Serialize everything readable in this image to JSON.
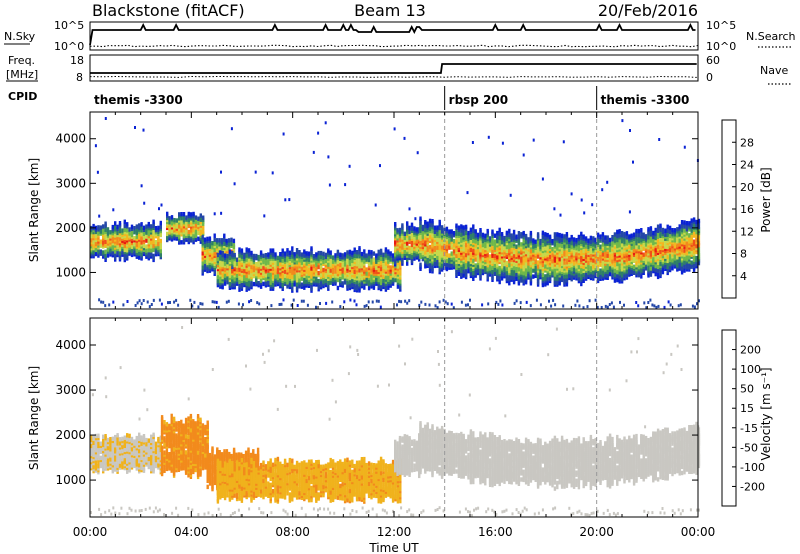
{
  "header": {
    "station": "Blackstone (fitACF)",
    "beam": "Beam 13",
    "date": "20/Feb/2016"
  },
  "summary": {
    "nsky_label": "N.Sky",
    "nsky_ticks": [
      "10^5",
      "10^0"
    ],
    "nsearch_label": "N.Search",
    "nsearch_ticks": [
      "10^5",
      "10^0"
    ],
    "freq_label_line1": "Freq.",
    "freq_label_line2": "[MHz]",
    "freq_ticks": [
      "18",
      "8"
    ],
    "nave_label": "Nave",
    "nave_ticks": [
      "60",
      "0"
    ],
    "cpid_label": "CPID",
    "cpid_segments": [
      {
        "label": "themis -3300",
        "start_hour": 0.0
      },
      {
        "label": "rbsp 200",
        "start_hour": 14.0
      },
      {
        "label": "themis -3300",
        "start_hour": 20.0
      }
    ]
  },
  "colors": {
    "power_scale": [
      "#0a22d4",
      "#2447a8",
      "#2f7f68",
      "#6fb84a",
      "#c8d84a",
      "#f2b820",
      "#f28a1c",
      "#f05018",
      "#e81a12"
    ],
    "velocity_scale": [
      "#e81a12",
      "#f04818",
      "#f28a1c",
      "#f0b21c",
      "#c9c7c2",
      "#c9c7c2",
      "#6cc43a",
      "#2f8a6e",
      "#2a5cc8",
      "#1536c8"
    ]
  },
  "chart_data": [
    {
      "type": "heatmap",
      "title": "Power",
      "ylabel": "Slant Range [km]",
      "xlabel": "Time UT",
      "xlim_hours": [
        0,
        24
      ],
      "ylim": [
        180,
        4600
      ],
      "yticks": [
        "1000",
        "2000",
        "3000",
        "4000"
      ],
      "colorbar": {
        "label": "Power [dB]",
        "ticks": [
          "4",
          "8",
          "12",
          "16",
          "20",
          "24",
          "28"
        ],
        "range": [
          0,
          32
        ]
      },
      "echo_bands": [
        {
          "t_start": 0.0,
          "t_end": 2.8,
          "center_km": 1760,
          "width_km": 380
        },
        {
          "t_start": 3.0,
          "t_end": 4.5,
          "center_km": 2050,
          "width_km": 300
        },
        {
          "t_start": 4.4,
          "t_end": 5.7,
          "center_km": 1450,
          "width_km": 380
        },
        {
          "t_start": 5.0,
          "t_end": 12.2,
          "center_km": 1120,
          "width_km": 420
        },
        {
          "t_start": 12.0,
          "t_end": 13.0,
          "center_km": 1700,
          "width_km": 420
        },
        {
          "t_start": 13.0,
          "t_end": 24.0,
          "center_km": 1480,
          "width_km": 520
        }
      ]
    },
    {
      "type": "heatmap",
      "title": "Velocity",
      "ylabel": "Slant Range [km]",
      "xlabel": "Time UT",
      "xlim_hours": [
        0,
        24
      ],
      "ylim": [
        180,
        4600
      ],
      "yticks": [
        "1000",
        "2000",
        "3000",
        "4000"
      ],
      "colorbar": {
        "label": "Velocity [m s⁻¹]",
        "ticks": [
          "200",
          "100",
          "50",
          "15",
          "-15",
          "-50",
          "-100",
          "-200"
        ],
        "range": [
          -250,
          250
        ]
      },
      "echo_bands": [
        {
          "t_start": 0.0,
          "t_end": 2.8,
          "center_km": 1650,
          "width_km": 380,
          "velocity": -10
        },
        {
          "t_start": 2.8,
          "t_end": 4.6,
          "center_km": 1800,
          "width_km": 600,
          "velocity": -60
        },
        {
          "t_start": 4.6,
          "t_end": 6.6,
          "center_km": 1300,
          "width_km": 400,
          "velocity": -80
        },
        {
          "t_start": 5.0,
          "t_end": 12.2,
          "center_km": 1050,
          "width_km": 420,
          "velocity": -40
        },
        {
          "t_start": 12.0,
          "t_end": 13.0,
          "center_km": 1600,
          "width_km": 400,
          "velocity": 20
        },
        {
          "t_start": 13.0,
          "t_end": 24.0,
          "center_km": 1550,
          "width_km": 500,
          "velocity": 0
        }
      ]
    }
  ],
  "time_axis": {
    "label": "Time UT",
    "ticks": [
      "00:00",
      "04:00",
      "08:00",
      "12:00",
      "16:00",
      "20:00",
      "00:00"
    ]
  }
}
